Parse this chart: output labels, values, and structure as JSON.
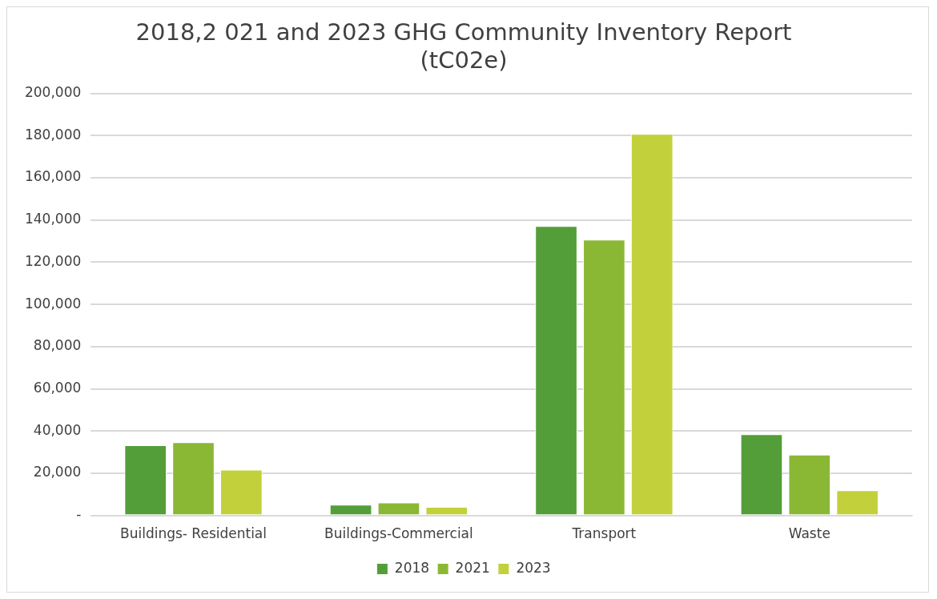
{
  "chart_data": {
    "type": "bar",
    "title": "2018,2 021 and 2023 GHG Community Inventory Report\n(tC02e)",
    "categories": [
      "Buildings- Residential",
      "Buildings-Commercial",
      "Transport",
      "Waste"
    ],
    "series": [
      {
        "name": "2018",
        "color": "#539e38",
        "values": [
          33200,
          5100,
          137100,
          38500
        ]
      },
      {
        "name": "2021",
        "color": "#8bb834",
        "values": [
          34700,
          6100,
          130700,
          28800
        ]
      },
      {
        "name": "2023",
        "color": "#c2d13b",
        "values": [
          21700,
          4000,
          180800,
          11900
        ]
      }
    ],
    "ylim": [
      0,
      200000
    ],
    "yticks": [
      {
        "value": 0,
        "label": "-"
      },
      {
        "value": 20000,
        "label": "20,000"
      },
      {
        "value": 40000,
        "label": "40,000"
      },
      {
        "value": 60000,
        "label": "60,000"
      },
      {
        "value": 80000,
        "label": "80,000"
      },
      {
        "value": 100000,
        "label": "100,000"
      },
      {
        "value": 120000,
        "label": "120,000"
      },
      {
        "value": 140000,
        "label": "140,000"
      },
      {
        "value": 160000,
        "label": "160,000"
      },
      {
        "value": 180000,
        "label": "180,000"
      },
      {
        "value": 200000,
        "label": "200,000"
      }
    ],
    "grid": "y",
    "legend": "bottom"
  }
}
